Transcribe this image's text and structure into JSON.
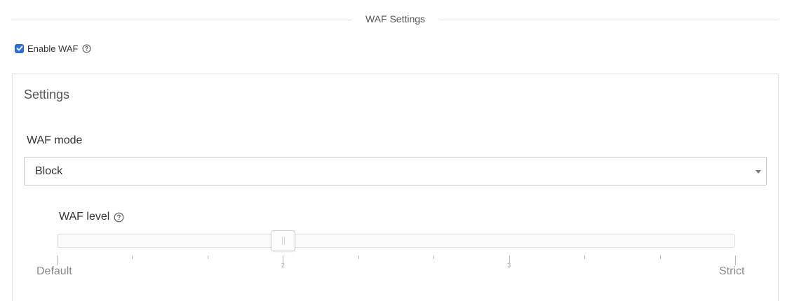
{
  "section": {
    "title": "WAF Settings"
  },
  "enable": {
    "label": "Enable WAF",
    "checked": true
  },
  "panel": {
    "title": "Settings",
    "mode": {
      "label": "WAF mode",
      "value": "Block"
    },
    "level": {
      "label": "WAF level",
      "value": 2,
      "min": 1,
      "max": 4,
      "tick_numbers": [
        "2",
        "3"
      ],
      "min_label": "Default",
      "max_label": "Strict"
    }
  },
  "icons": {
    "help": "help-circle-icon",
    "dropdown": "caret-down-icon",
    "check": "check-icon"
  },
  "colors": {
    "accent": "#2e6fd8",
    "border": "#e2e2e2",
    "muted_text": "#888888"
  }
}
